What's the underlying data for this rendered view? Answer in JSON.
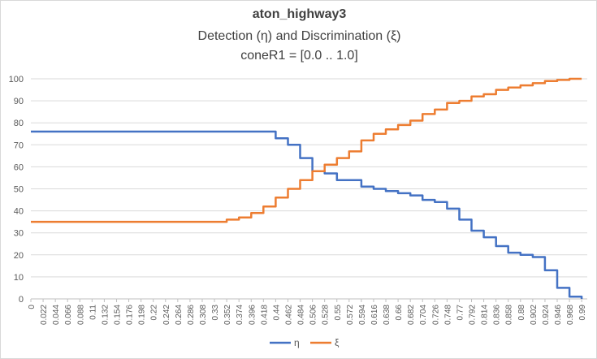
{
  "chart_data": {
    "type": "line",
    "title": "aton_highway3",
    "subtitle_lines": [
      "Detection (η) and Discrimination (ξ)",
      "coneR1 = [0.0 .. 1.0]"
    ],
    "xlabel": "",
    "ylabel": "",
    "ylim": [
      0,
      100
    ],
    "y_ticks": [
      0,
      10,
      20,
      30,
      40,
      50,
      60,
      70,
      80,
      90,
      100
    ],
    "x_tick_labels": [
      "0",
      "0.022",
      "0.044",
      "0.066",
      "0.088",
      "0.11",
      "0.132",
      "0.154",
      "0.176",
      "0.198",
      "0.22",
      "0.242",
      "0.264",
      "0.286",
      "0.308",
      "0.33",
      "0.352",
      "0.374",
      "0.396",
      "0.418",
      "0.44",
      "0.462",
      "0.484",
      "0.506",
      "0.528",
      "0.55",
      "0.572",
      "0.594",
      "0.616",
      "0.638",
      "0.66",
      "0.682",
      "0.704",
      "0.726",
      "0.748",
      "0.77",
      "0.792",
      "0.814",
      "0.836",
      "0.858",
      "0.88",
      "0.902",
      "0.924",
      "0.946",
      "0.968",
      "0.99"
    ],
    "grid": true,
    "legend_position": "bottom",
    "colors": {
      "eta": "#4472c4",
      "xi": "#ed7d31",
      "grid": "#d9d9d9",
      "text": "#595959"
    },
    "series": [
      {
        "name": "η",
        "key": "eta",
        "points": [
          [
            0,
            76
          ],
          [
            0.418,
            76
          ],
          [
            0.44,
            73
          ],
          [
            0.462,
            70
          ],
          [
            0.484,
            64
          ],
          [
            0.506,
            58
          ],
          [
            0.528,
            57
          ],
          [
            0.55,
            54
          ],
          [
            0.572,
            54
          ],
          [
            0.594,
            51
          ],
          [
            0.616,
            50
          ],
          [
            0.638,
            49
          ],
          [
            0.66,
            48
          ],
          [
            0.682,
            47
          ],
          [
            0.704,
            45
          ],
          [
            0.726,
            44
          ],
          [
            0.748,
            41
          ],
          [
            0.77,
            36
          ],
          [
            0.792,
            31
          ],
          [
            0.814,
            28
          ],
          [
            0.836,
            24
          ],
          [
            0.858,
            21
          ],
          [
            0.88,
            20
          ],
          [
            0.902,
            19
          ],
          [
            0.924,
            13
          ],
          [
            0.946,
            5
          ],
          [
            0.968,
            1
          ],
          [
            0.99,
            0
          ]
        ]
      },
      {
        "name": "ξ",
        "key": "xi",
        "points": [
          [
            0,
            35
          ],
          [
            0.33,
            35
          ],
          [
            0.352,
            36
          ],
          [
            0.374,
            37
          ],
          [
            0.396,
            39
          ],
          [
            0.418,
            42
          ],
          [
            0.44,
            46
          ],
          [
            0.462,
            50
          ],
          [
            0.484,
            54
          ],
          [
            0.506,
            58
          ],
          [
            0.528,
            61
          ],
          [
            0.55,
            64
          ],
          [
            0.572,
            67
          ],
          [
            0.594,
            72
          ],
          [
            0.616,
            75
          ],
          [
            0.638,
            77
          ],
          [
            0.66,
            79
          ],
          [
            0.682,
            81
          ],
          [
            0.704,
            84
          ],
          [
            0.726,
            86
          ],
          [
            0.748,
            89
          ],
          [
            0.77,
            90
          ],
          [
            0.792,
            92
          ],
          [
            0.814,
            93
          ],
          [
            0.836,
            95
          ],
          [
            0.858,
            96
          ],
          [
            0.88,
            97
          ],
          [
            0.902,
            98
          ],
          [
            0.924,
            99
          ],
          [
            0.946,
            99.5
          ],
          [
            0.968,
            100
          ],
          [
            0.99,
            100
          ]
        ]
      }
    ]
  }
}
